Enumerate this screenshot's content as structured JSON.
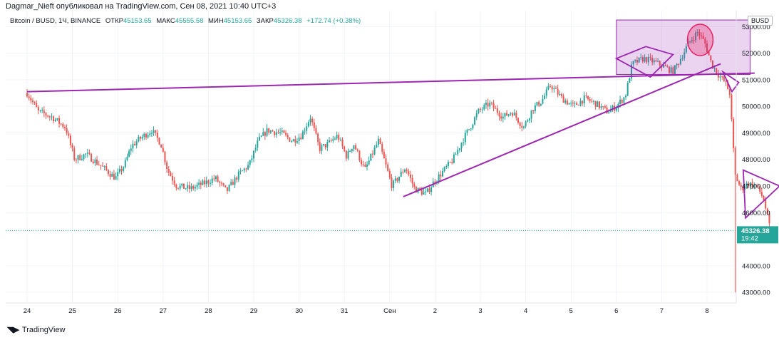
{
  "header": {
    "published_by": "Dagmar_Nieft опубликовал на TradingView.com, Сен 08, 2021 10:40 UTC+3"
  },
  "legend": {
    "symbol": "Bitcoin / BUSD, 1Ч, BINANCE",
    "open_label": "ОТКР",
    "open_value": "45153.65",
    "high_label": "МАКС",
    "high_value": "45555.58",
    "low_label": "МИН",
    "low_value": "45153.65",
    "close_label": "ЗАКР",
    "close_value": "45326.38",
    "change": "+172.74 (+0.38%)"
  },
  "currency_badge": "BUSD",
  "price_badge": {
    "price": "45326.38",
    "timer": "19:42"
  },
  "brand": {
    "logo_icon": "tradingview-logo-icon",
    "name": "TradingView"
  },
  "colors": {
    "up": "#26a69a",
    "down": "#ef5350",
    "drawing": "#9c27b0",
    "grid": "#f0f3fa"
  },
  "chart_data": {
    "type": "candlestick",
    "y_ticks": [
      "53000.00",
      "52000.00",
      "51000.00",
      "50000.00",
      "49000.00",
      "48000.00",
      "47000.00",
      "46000.00",
      "44000.00",
      "43000.00"
    ],
    "ylim": [
      42600,
      53600
    ],
    "x_ticks": [
      "24",
      "25",
      "26",
      "27",
      "28",
      "29",
      "30",
      "31",
      "Сен",
      "2",
      "3",
      "4",
      "5",
      "6",
      "7",
      "8"
    ],
    "last_price": 45326.38,
    "close_path": [
      [
        0,
        50500
      ],
      [
        0.25,
        49800
      ],
      [
        0.55,
        49600
      ],
      [
        0.85,
        49200
      ],
      [
        1.05,
        48000
      ],
      [
        1.3,
        48200
      ],
      [
        1.6,
        47800
      ],
      [
        1.95,
        47300
      ],
      [
        2.15,
        47800
      ],
      [
        2.3,
        48500
      ],
      [
        2.5,
        48800
      ],
      [
        2.75,
        49100
      ],
      [
        2.95,
        48600
      ],
      [
        3.1,
        47600
      ],
      [
        3.3,
        47000
      ],
      [
        3.6,
        46900
      ],
      [
        3.9,
        47100
      ],
      [
        4.15,
        47300
      ],
      [
        4.4,
        46800
      ],
      [
        4.65,
        47400
      ],
      [
        4.9,
        47800
      ],
      [
        5.1,
        48700
      ],
      [
        5.3,
        49100
      ],
      [
        5.6,
        49000
      ],
      [
        5.85,
        48700
      ],
      [
        6.05,
        48900
      ],
      [
        6.25,
        49600
      ],
      [
        6.45,
        48400
      ],
      [
        6.65,
        48600
      ],
      [
        6.85,
        48900
      ],
      [
        7.05,
        48100
      ],
      [
        7.2,
        48600
      ],
      [
        7.45,
        47600
      ],
      [
        7.75,
        48700
      ],
      [
        8.05,
        47000
      ],
      [
        8.35,
        47700
      ],
      [
        8.55,
        46900
      ],
      [
        8.8,
        46700
      ],
      [
        8.95,
        47100
      ],
      [
        9.15,
        47500
      ],
      [
        9.4,
        48000
      ],
      [
        9.6,
        48700
      ],
      [
        9.8,
        49300
      ],
      [
        9.95,
        49800
      ],
      [
        10.2,
        50100
      ],
      [
        10.5,
        49600
      ],
      [
        10.7,
        49800
      ],
      [
        10.95,
        49200
      ],
      [
        11.15,
        49900
      ],
      [
        11.35,
        50200
      ],
      [
        11.55,
        50800
      ],
      [
        11.8,
        50300
      ],
      [
        12.05,
        50000
      ],
      [
        12.3,
        50300
      ],
      [
        12.55,
        50100
      ],
      [
        12.8,
        49800
      ],
      [
        13.0,
        50000
      ],
      [
        13.2,
        50400
      ],
      [
        13.35,
        51600
      ],
      [
        13.6,
        51800
      ],
      [
        13.8,
        51700
      ],
      [
        14.05,
        51500
      ],
      [
        14.25,
        51300
      ],
      [
        14.45,
        51900
      ],
      [
        14.6,
        52400
      ],
      [
        14.8,
        52800
      ],
      [
        14.95,
        52400
      ],
      [
        15.1,
        51600
      ],
      [
        15.25,
        51200
      ],
      [
        15.4,
        50900
      ],
      [
        15.5,
        50500
      ],
      [
        15.62,
        47400
      ],
      [
        15.75,
        46900
      ],
      [
        15.9,
        47100
      ],
      [
        16.1,
        47000
      ],
      [
        16.25,
        46500
      ],
      [
        16.4,
        45300
      ]
    ],
    "spike_low": {
      "x": 15.63,
      "y": 43000
    },
    "drawings": {
      "resistance_line": [
        [
          0,
          50550
        ],
        [
          16.05,
          51250
        ]
      ],
      "support_line": [
        [
          8.3,
          46600
        ],
        [
          15.3,
          51600
        ]
      ],
      "rectangle": [
        [
          13.0,
          53250
        ],
        [
          15.95,
          51200
        ]
      ],
      "circle_center": [
        14.85,
        52500
      ],
      "pennant_1": [
        [
          13.0,
          51800
        ],
        [
          13.65,
          52250
        ],
        [
          14.25,
          51950
        ],
        [
          13.75,
          51100
        ]
      ],
      "pennant_2": [
        [
          15.35,
          51300
        ],
        [
          15.7,
          50900
        ],
        [
          15.55,
          50550
        ]
      ],
      "pennant_3": [
        [
          15.8,
          47600
        ],
        [
          16.6,
          47000
        ],
        [
          15.85,
          45800
        ]
      ]
    }
  }
}
